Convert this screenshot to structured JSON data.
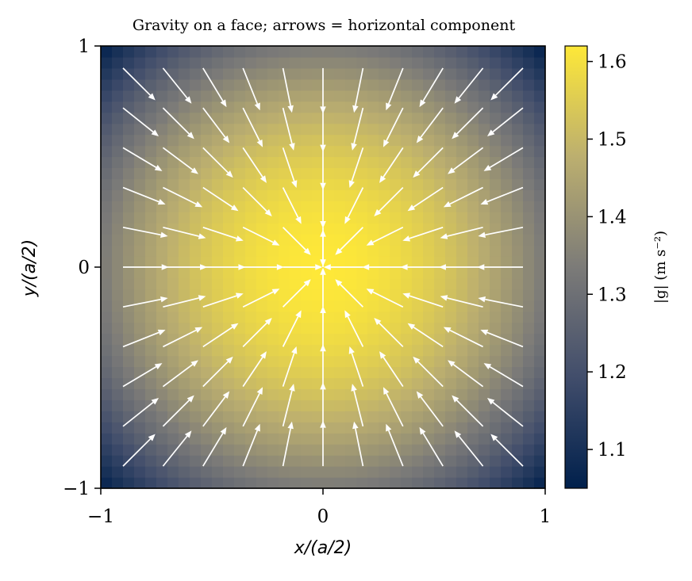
{
  "chart_data": [
    {
      "type": "heatmap",
      "title": "Gravity on a face; arrows = horizontal component",
      "xlabel": "x/(a/2)",
      "ylabel": "y/(a/2)",
      "xlim": [
        -1,
        1
      ],
      "ylim": [
        -1,
        1
      ],
      "x_ticks": [
        -1,
        0,
        1
      ],
      "y_ticks": [
        -1,
        0,
        1
      ],
      "x_tick_labels": [
        "−1",
        "0",
        "1"
      ],
      "y_tick_labels": [
        "−1",
        "0",
        "1"
      ],
      "grid": false,
      "field": "|g| magnitude over a square face of a cube; maximum at center (about 1.62), minimum at corners (about 1.05)",
      "center_value": 1.62,
      "edge_midpoint_value": 1.33,
      "corner_value": 1.05,
      "grid_resolution": 40,
      "colormap": "cividis",
      "colormap_colors": [
        "#00204c",
        "#414d6b",
        "#7c7b78",
        "#bcaf6f",
        "#fee838"
      ]
    },
    {
      "type": "scatter",
      "name": "quiver",
      "description": "11 x 11 grid of arrows showing horizontal gravity component pointing toward face center",
      "x": [
        -0.9,
        -0.72,
        -0.54,
        -0.36,
        -0.18,
        0,
        0.18,
        0.36,
        0.54,
        0.72,
        0.9
      ],
      "y": [
        -0.9,
        -0.72,
        -0.54,
        -0.36,
        -0.18,
        0,
        0.18,
        0.36,
        0.54,
        0.72,
        0.9
      ],
      "direction": "toward center",
      "color": "#ffffff"
    }
  ],
  "colorbar": {
    "label": "|g| (m s⁻²)",
    "vmin": 1.05,
    "vmax": 1.62,
    "ticks": [
      1.1,
      1.2,
      1.3,
      1.4,
      1.5,
      1.6
    ],
    "tick_labels": [
      "1.1",
      "1.2",
      "1.3",
      "1.4",
      "1.5",
      "1.6"
    ]
  }
}
